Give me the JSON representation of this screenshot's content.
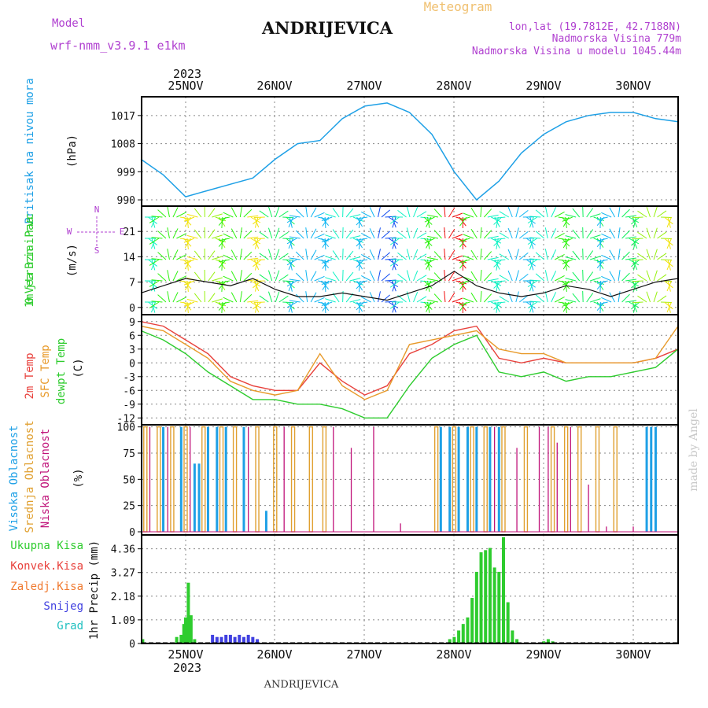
{
  "header": {
    "model_label": "Model",
    "model_name": "wrf-nmm_v3.9.1 e1km",
    "station": "ANDRIJEVICA",
    "title": "Meteogram",
    "lonlat": "lon,lat (19.7812E, 42.7188N)",
    "elevation": "Nadmorska Visina 779m",
    "model_elevation": "Nadmorska Visina u modelu 1045.44m",
    "credit": "made by Angel",
    "footer_station": "ANDRIJEVICA"
  },
  "colors": {
    "pressure": "#1ea0e6",
    "temp2m": "#e8413c",
    "sfc": "#e89a2a",
    "dewpt": "#2ecc2e",
    "high_cloud": "#1ea0e6",
    "mid_cloud": "#e0a030",
    "low_cloud": "#c0147a",
    "precip": "#2ecc2e",
    "convective": "#e8413c",
    "frozen": "#f07a30",
    "snow": "#4040e0",
    "hail": "#20c0c0",
    "wind_labels": "#b040d0"
  },
  "chart_data": [
    {
      "type": "line",
      "panel": "pressure",
      "xlabel": "",
      "ylabel_title": "Pritisak na nivou mora",
      "ylabel_unit": "(hPa)",
      "yticks": [
        990,
        999,
        1008,
        1017
      ],
      "ylim": [
        988,
        1023
      ],
      "x_days": [
        "25NOV",
        "26NOV",
        "27NOV",
        "28NOV",
        "29NOV",
        "30NOV"
      ],
      "x_year": "2023",
      "x": [
        0,
        0.25,
        0.5,
        0.75,
        1,
        1.25,
        1.5,
        1.75,
        2,
        2.25,
        2.5,
        2.75,
        3,
        3.25,
        3.5,
        3.75,
        4,
        4.25,
        4.5,
        4.75,
        5,
        5.25,
        5.5,
        5.75,
        6
      ],
      "values": [
        1003,
        998,
        991,
        993,
        995,
        997,
        1003,
        1008,
        1009,
        1016,
        1020,
        1021,
        1018,
        1011,
        999,
        990,
        996,
        1005,
        1011,
        1015,
        1017,
        1018,
        1018,
        1016,
        1015
      ]
    },
    {
      "type": "line",
      "panel": "wind",
      "ylabel_title": "10m Vjetar Brzina i Pravac",
      "ylabel_unit": "(m/s)",
      "yticks": [
        0,
        7,
        14,
        21
      ],
      "ylim": [
        -2,
        28
      ],
      "compass": {
        "north": "N",
        "south": "S",
        "east": "E",
        "west": "W"
      },
      "series": [
        {
          "name": "",
          "x": [
            0,
            0.25,
            0.5,
            0.75,
            1,
            1.25,
            1.5,
            1.75,
            2,
            2.25,
            2.5,
            2.75,
            3,
            3.25,
            3.5,
            3.75,
            4,
            4.25,
            4.5,
            4.75,
            5,
            5.25,
            5.5,
            5.75,
            6
          ],
          "values": [
            4,
            6,
            8,
            7,
            6,
            8,
            5,
            3,
            3,
            4,
            3,
            2,
            4,
            6,
            10,
            6,
            4,
            3,
            4,
            6,
            5,
            3,
            5,
            7,
            8
          ]
        }
      ]
    },
    {
      "type": "line",
      "panel": "temperature",
      "ylabel_titles": [
        "2m Temp",
        "SFC Temp",
        "dewpt Temp"
      ],
      "ylabel_unit": "(C)",
      "yticks": [
        -12,
        -9,
        -6,
        -3,
        0,
        3,
        6,
        9
      ],
      "ylim": [
        -13.5,
        10.5
      ],
      "x": [
        0,
        0.25,
        0.5,
        0.75,
        1,
        1.25,
        1.5,
        1.75,
        2,
        2.25,
        2.5,
        2.75,
        3,
        3.25,
        3.5,
        3.75,
        4,
        4.25,
        4.5,
        4.75,
        5,
        5.25,
        5.5,
        5.75,
        6
      ],
      "series": [
        {
          "key": "temp2m",
          "values": [
            9,
            8,
            5,
            2,
            -3,
            -5,
            -6,
            -6,
            0,
            -4,
            -7,
            -5,
            2,
            4,
            7,
            8,
            1,
            0,
            1,
            0,
            0,
            0,
            0,
            1,
            3
          ]
        },
        {
          "key": "sfc",
          "values": [
            8,
            7,
            4,
            1,
            -4,
            -6,
            -7,
            -6,
            2,
            -5,
            -8,
            -6,
            4,
            5,
            6,
            7,
            3,
            2,
            2,
            0,
            0,
            0,
            0,
            1,
            8
          ]
        },
        {
          "key": "dewpt",
          "values": [
            7,
            5,
            2,
            -2,
            -5,
            -8,
            -8,
            -9,
            -9,
            -10,
            -12,
            -12,
            -5,
            1,
            4,
            6,
            -2,
            -3,
            -2,
            -4,
            -3,
            -3,
            -2,
            -1,
            3
          ]
        }
      ]
    },
    {
      "type": "bar",
      "panel": "cloud",
      "ylabel_titles": [
        "Visoka Oblacnost",
        "Srednja Oblacnost",
        "Niska Oblacnost"
      ],
      "ylabel_unit": "(%)",
      "yticks": [
        0,
        25,
        50,
        75,
        100
      ],
      "ylim": [
        0,
        100
      ],
      "series": [
        {
          "key": "mid_cloud",
          "bars": [
            [
              0.05,
              100
            ],
            [
              0.2,
              100
            ],
            [
              0.35,
              100
            ],
            [
              0.5,
              100
            ],
            [
              0.7,
              100
            ],
            [
              0.9,
              100
            ],
            [
              1.05,
              100
            ],
            [
              1.3,
              100
            ],
            [
              1.5,
              100
            ],
            [
              1.7,
              100
            ],
            [
              1.9,
              100
            ],
            [
              2.05,
              100
            ],
            [
              3.3,
              100
            ],
            [
              3.5,
              100
            ],
            [
              3.7,
              100
            ],
            [
              3.85,
              100
            ],
            [
              4.05,
              100
            ],
            [
              4.3,
              100
            ],
            [
              4.6,
              100
            ],
            [
              4.75,
              100
            ],
            [
              4.9,
              100
            ],
            [
              5.1,
              100
            ],
            [
              5.3,
              100
            ]
          ]
        },
        {
          "key": "high_cloud",
          "bars": [
            [
              0.25,
              100
            ],
            [
              0.45,
              100
            ],
            [
              0.6,
              65
            ],
            [
              0.65,
              65
            ],
            [
              0.75,
              100
            ],
            [
              0.85,
              100
            ],
            [
              0.95,
              100
            ],
            [
              1.15,
              100
            ],
            [
              1.4,
              20
            ],
            [
              3.35,
              100
            ],
            [
              3.45,
              100
            ],
            [
              3.55,
              100
            ],
            [
              3.65,
              100
            ],
            [
              3.75,
              100
            ],
            [
              3.9,
              100
            ],
            [
              4.0,
              100
            ],
            [
              5.65,
              100
            ],
            [
              5.7,
              100
            ],
            [
              5.75,
              100
            ]
          ]
        },
        {
          "key": "low_cloud",
          "bars": [
            [
              0.1,
              100
            ],
            [
              0.3,
              100
            ],
            [
              0.55,
              100
            ],
            [
              1.2,
              100
            ],
            [
              1.6,
              100
            ],
            [
              2.15,
              100
            ],
            [
              2.35,
              80
            ],
            [
              2.6,
              100
            ],
            [
              2.9,
              8
            ],
            [
              3.95,
              100
            ],
            [
              4.2,
              80
            ],
            [
              4.45,
              100
            ],
            [
              4.55,
              100
            ],
            [
              4.65,
              85
            ],
            [
              4.8,
              100
            ],
            [
              5.0,
              45
            ],
            [
              5.2,
              5
            ],
            [
              5.5,
              5
            ]
          ]
        }
      ]
    },
    {
      "type": "bar",
      "panel": "precip",
      "ylabel": "1hr Precip (mm)",
      "legend": [
        "Ukupna Kisa",
        "Konvek.Kisa",
        "Zaledj.Kisa",
        "Snijeg",
        "Grad"
      ],
      "yticks": [
        0,
        1.09,
        2.18,
        3.27,
        4.36
      ],
      "ylim": [
        0,
        5.0
      ],
      "series": [
        {
          "key": "precip",
          "bars": [
            [
              0.02,
              0.2
            ],
            [
              0.4,
              0.3
            ],
            [
              0.45,
              0.4
            ],
            [
              0.48,
              0.9
            ],
            [
              0.5,
              1.2
            ],
            [
              0.53,
              2.8
            ],
            [
              0.56,
              1.3
            ],
            [
              0.6,
              0.2
            ],
            [
              3.45,
              0.2
            ],
            [
              3.5,
              0.3
            ],
            [
              3.55,
              0.6
            ],
            [
              3.6,
              0.9
            ],
            [
              3.65,
              1.2
            ],
            [
              3.7,
              2.1
            ],
            [
              3.75,
              3.3
            ],
            [
              3.8,
              4.2
            ],
            [
              3.85,
              4.3
            ],
            [
              3.9,
              4.4
            ],
            [
              3.95,
              3.5
            ],
            [
              4.0,
              3.3
            ],
            [
              4.05,
              4.9
            ],
            [
              4.1,
              1.9
            ],
            [
              4.15,
              0.6
            ],
            [
              4.2,
              0.2
            ],
            [
              4.5,
              0.1
            ],
            [
              4.55,
              0.2
            ],
            [
              4.6,
              0.1
            ]
          ]
        },
        {
          "key": "snow",
          "bars": [
            [
              0.8,
              0.4
            ],
            [
              0.85,
              0.3
            ],
            [
              0.9,
              0.3
            ],
            [
              0.95,
              0.4
            ],
            [
              1.0,
              0.4
            ],
            [
              1.05,
              0.3
            ],
            [
              1.1,
              0.4
            ],
            [
              1.15,
              0.3
            ],
            [
              1.2,
              0.4
            ],
            [
              1.25,
              0.3
            ],
            [
              1.3,
              0.2
            ]
          ]
        }
      ]
    }
  ]
}
